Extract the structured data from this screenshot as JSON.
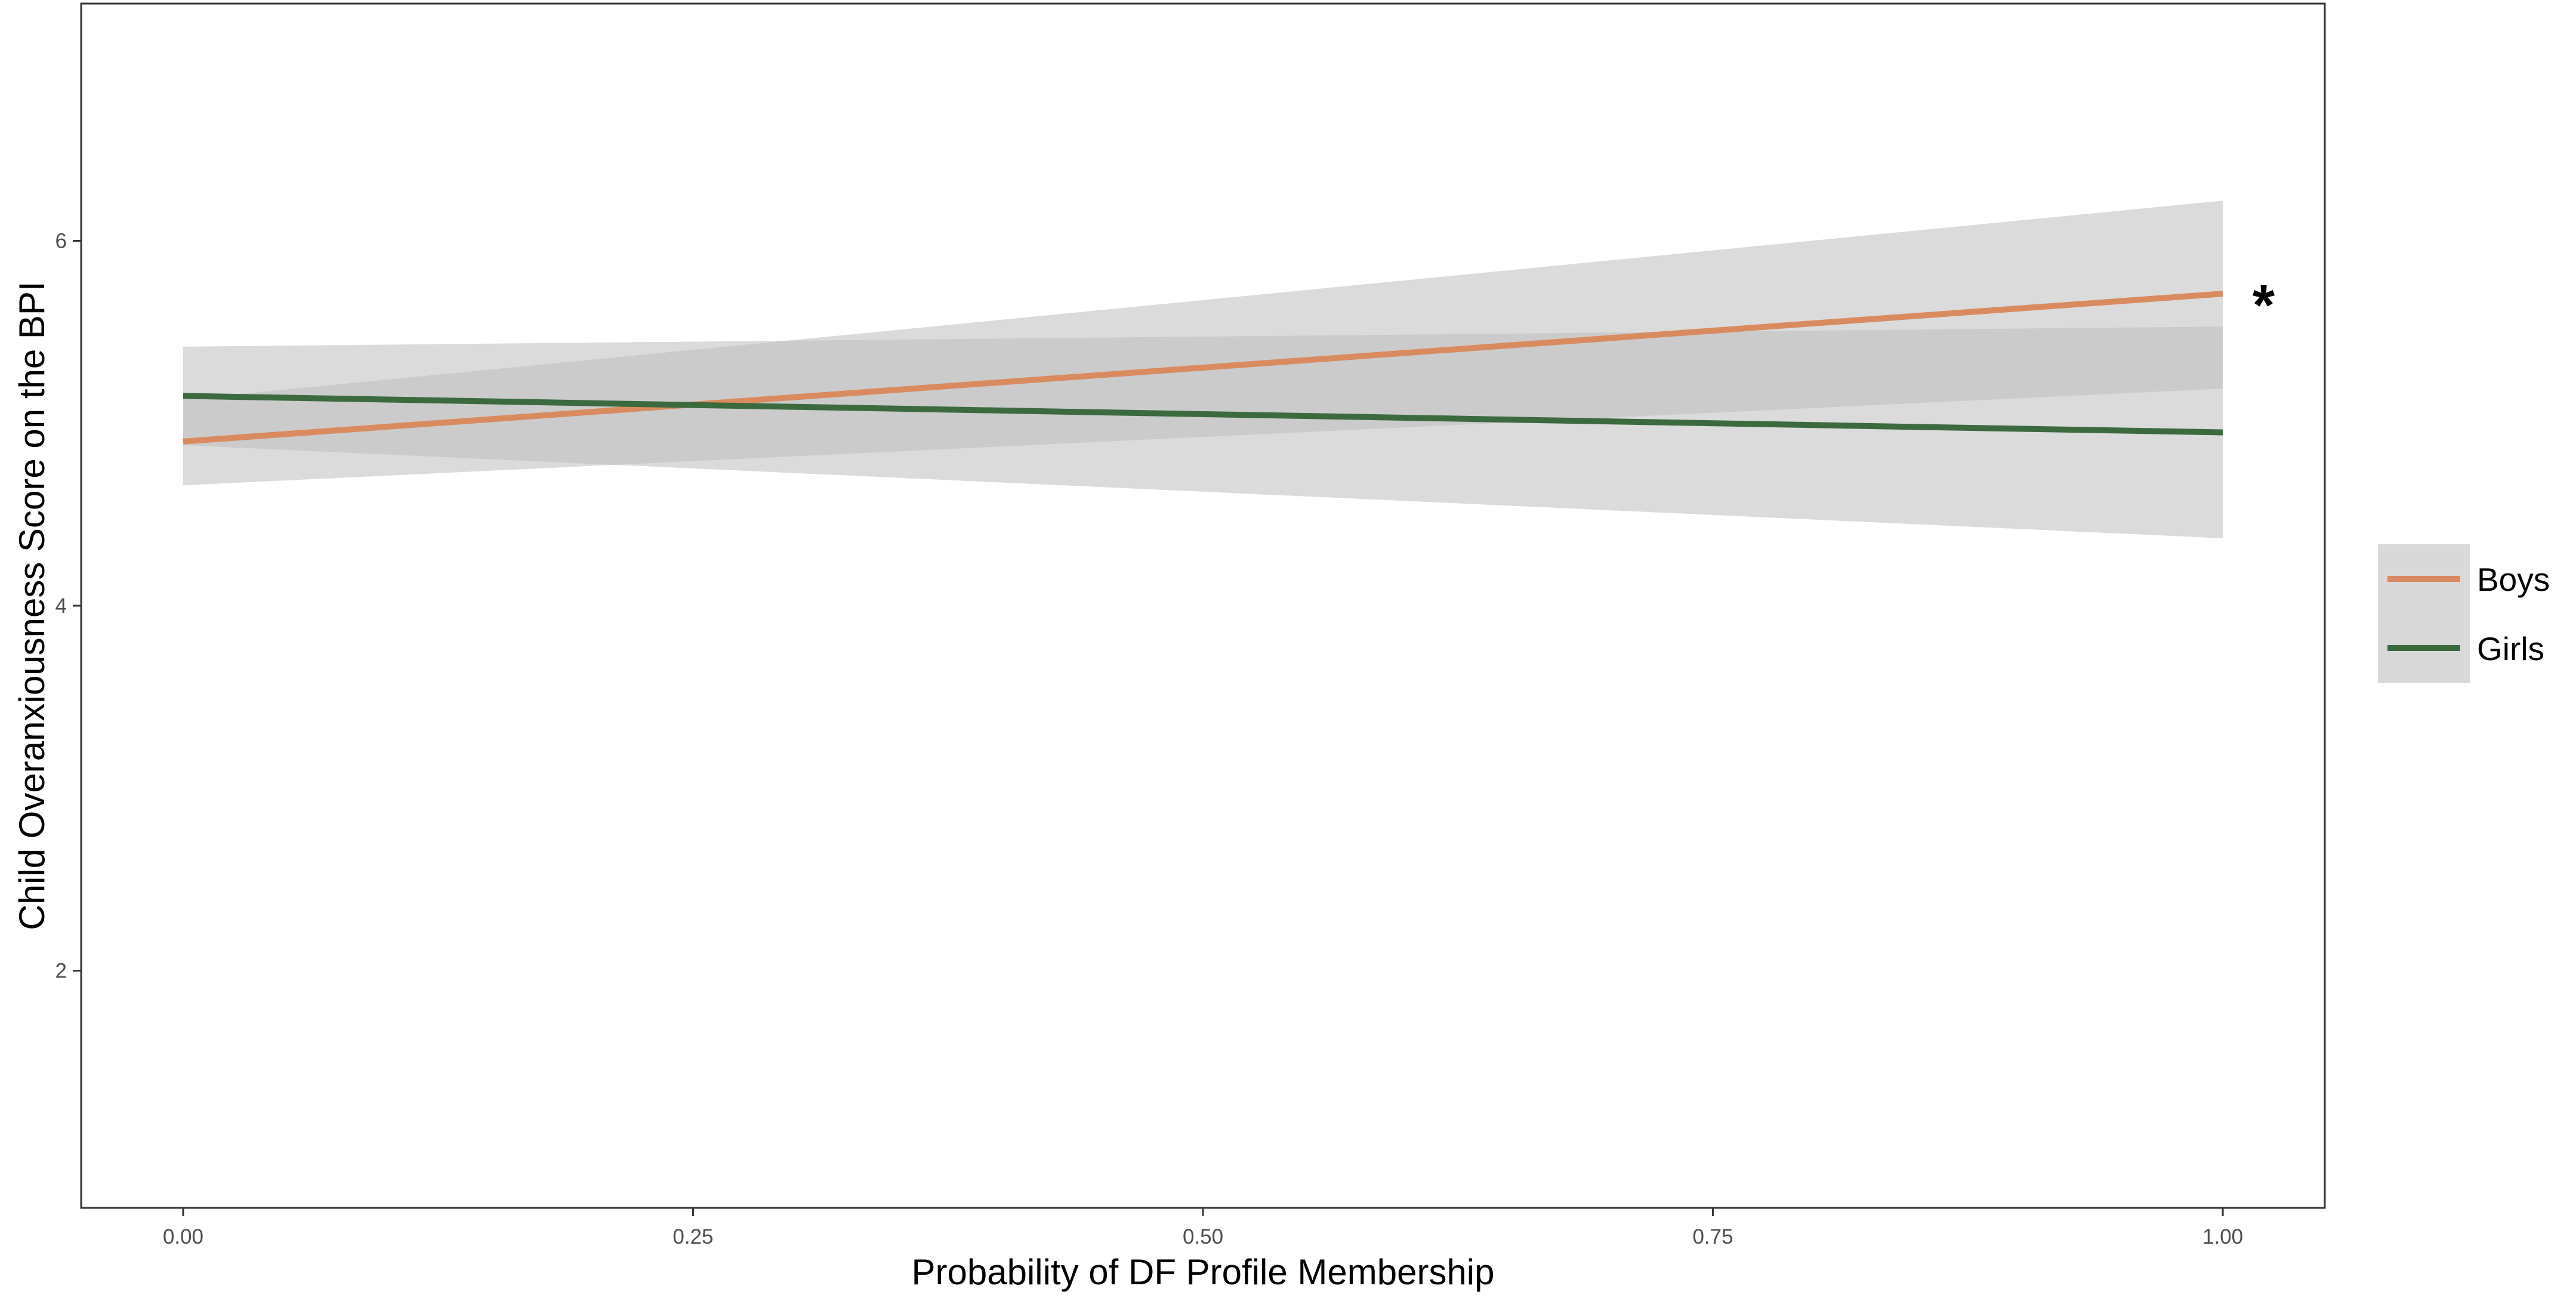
{
  "chart_data": {
    "type": "line",
    "title": "",
    "xlabel": "Probability of DF Profile Membership",
    "ylabel": "Child Overanxiousness Score on the BPI",
    "xlim": [
      -0.05,
      1.05
    ],
    "ylim": [
      0.7,
      7.3
    ],
    "x_ticks": [
      0,
      0.25,
      0.5,
      0.75,
      1
    ],
    "x_tick_labels": [
      "0.00",
      "0.25",
      "0.50",
      "0.75",
      "1.00"
    ],
    "y_ticks": [
      2,
      4,
      6
    ],
    "y_tick_labels": [
      "2",
      "4",
      "6"
    ],
    "grid": false,
    "legend_position": "right",
    "series": [
      {
        "name": "Boys",
        "color": "#d98b5f",
        "x": [
          0,
          1
        ],
        "y": [
          4.9,
          5.71
        ],
        "ci_lower": [
          4.66,
          5.19
        ],
        "ci_upper": [
          5.13,
          6.22
        ]
      },
      {
        "name": "Girls",
        "color": "#3b6a3e",
        "x": [
          0,
          1
        ],
        "y": [
          5.15,
          4.95
        ],
        "ci_lower": [
          4.88,
          4.37
        ],
        "ci_upper": [
          5.42,
          5.53
        ]
      }
    ],
    "annotations": [
      {
        "text": "*",
        "x": 1.02,
        "y": 5.71
      }
    ],
    "ribbon_color": "#bdbdbd"
  }
}
